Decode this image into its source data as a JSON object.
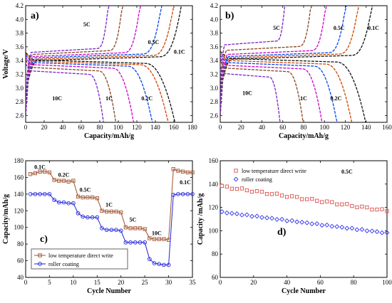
{
  "chart_data": [
    {
      "panel": "a)",
      "type": "line",
      "xlabel": "Capacity/mAh/g",
      "ylabel": "Voltage/V",
      "xlim": [
        0,
        180
      ],
      "ylim": [
        2.5,
        4.2
      ],
      "xticks": [
        0,
        20,
        40,
        60,
        80,
        100,
        120,
        140,
        160,
        180
      ],
      "yticks": [
        2.6,
        2.8,
        3.0,
        3.2,
        3.4,
        3.6,
        3.8,
        4.0,
        4.2
      ],
      "series": [
        {
          "rate": "0.1C",
          "charge_capacity": 168,
          "discharge_capacity": 162,
          "charge_plateau": 3.43,
          "discharge_plateau": 3.38
        },
        {
          "rate": "0.2C",
          "charge_capacity": 160,
          "discharge_capacity": 155,
          "charge_plateau": 3.45,
          "discharge_plateau": 3.36
        },
        {
          "rate": "0.5C",
          "charge_capacity": 147,
          "discharge_capacity": 138,
          "charge_plateau": 3.47,
          "discharge_plateau": 3.34
        },
        {
          "rate": "1C",
          "charge_capacity": 124,
          "discharge_capacity": 118,
          "charge_plateau": 3.49,
          "discharge_plateau": 3.31
        },
        {
          "rate": "5C",
          "charge_capacity": 105,
          "discharge_capacity": 99,
          "charge_plateau": 3.52,
          "discharge_plateau": 3.27
        },
        {
          "rate": "10C",
          "charge_capacity": 90,
          "discharge_capacity": 86,
          "charge_plateau": 3.55,
          "discharge_plateau": 3.22
        }
      ],
      "labels": [
        {
          "text": "5C",
          "x": 66,
          "y": 3.9
        },
        {
          "text": "0.5C",
          "x": 138,
          "y": 3.64
        },
        {
          "text": "0.1C",
          "x": 166,
          "y": 3.5
        },
        {
          "text": "10C",
          "x": 34,
          "y": 2.82
        },
        {
          "text": "1C",
          "x": 90,
          "y": 2.82
        },
        {
          "text": "0.2C",
          "x": 131,
          "y": 2.82
        }
      ]
    },
    {
      "panel": "b)",
      "type": "line",
      "xlabel": "Capacity/mAh/g",
      "ylabel": "",
      "xlim": [
        0,
        160
      ],
      "ylim": [
        2.5,
        4.2
      ],
      "xticks": [
        0,
        20,
        40,
        60,
        80,
        100,
        120,
        140,
        160
      ],
      "yticks": [
        2.6,
        2.8,
        3.0,
        3.2,
        3.4,
        3.6,
        3.8,
        4.0,
        4.2
      ],
      "series": [
        {
          "rate": "0.1C",
          "charge_capacity": 146,
          "discharge_capacity": 140,
          "charge_plateau": 3.45,
          "discharge_plateau": 3.4
        },
        {
          "rate": "0.2C",
          "charge_capacity": 133,
          "discharge_capacity": 127,
          "charge_plateau": 3.47,
          "discharge_plateau": 3.37
        },
        {
          "rate": "0.5C",
          "charge_capacity": 121,
          "discharge_capacity": 113,
          "charge_plateau": 3.49,
          "discharge_plateau": 3.34
        },
        {
          "rate": "1C",
          "charge_capacity": 102,
          "discharge_capacity": 99,
          "charge_plateau": 3.52,
          "discharge_plateau": 3.3
        },
        {
          "rate": "5C",
          "charge_capacity": 88,
          "discharge_capacity": 81,
          "charge_plateau": 3.58,
          "discharge_plateau": 3.26
        },
        {
          "rate": "10C",
          "charge_capacity": 63,
          "discharge_capacity": 59,
          "charge_plateau": 3.66,
          "discharge_plateau": 3.18
        }
      ],
      "labels": [
        {
          "text": "5C",
          "x": 54,
          "y": 3.85
        },
        {
          "text": "0.5C",
          "x": 114,
          "y": 3.85
        },
        {
          "text": "0.1C",
          "x": 147,
          "y": 3.85
        },
        {
          "text": "10C",
          "x": 26,
          "y": 2.9
        },
        {
          "text": "1C",
          "x": 80,
          "y": 2.82
        },
        {
          "text": "0.2C",
          "x": 111,
          "y": 2.82
        }
      ]
    },
    {
      "panel": "c)",
      "type": "line",
      "xlabel": "Cycle Number",
      "ylabel": "Capacity/mAh/g",
      "xlim": [
        0,
        35
      ],
      "ylim": [
        40,
        180
      ],
      "xticks": [
        0,
        5,
        10,
        15,
        20,
        25,
        30,
        35
      ],
      "yticks": [
        40,
        60,
        80,
        100,
        120,
        140,
        160,
        180
      ],
      "legend_position": "bottom-left",
      "series": [
        {
          "name": "low temperature direct write",
          "color": "#a0522d",
          "marker": "square",
          "x": [
            1,
            2,
            3,
            4,
            5,
            6,
            7,
            8,
            9,
            10,
            11,
            12,
            13,
            14,
            15,
            16,
            17,
            18,
            19,
            20,
            21,
            22,
            23,
            24,
            25,
            26,
            27,
            28,
            29,
            30,
            31,
            32,
            33,
            34,
            35
          ],
          "values": [
            164,
            165,
            167,
            167,
            166,
            157,
            156,
            156,
            155,
            156,
            137,
            136,
            136,
            136,
            135,
            120,
            119,
            119,
            119,
            118,
            100,
            99,
            99,
            99,
            98,
            87,
            86,
            86,
            86,
            85,
            170,
            168,
            167,
            166,
            166
          ]
        },
        {
          "name": "roller coating",
          "color": "#2222dd",
          "marker": "circle",
          "x": [
            1,
            2,
            3,
            4,
            5,
            6,
            7,
            8,
            9,
            10,
            11,
            12,
            13,
            14,
            15,
            16,
            17,
            18,
            19,
            20,
            21,
            22,
            23,
            24,
            25,
            26,
            27,
            28,
            29,
            30,
            31,
            32,
            33,
            34,
            35
          ],
          "values": [
            140,
            140,
            140,
            140,
            140,
            133,
            130,
            130,
            129,
            129,
            117,
            113,
            112,
            112,
            112,
            99,
            97,
            97,
            97,
            96,
            82,
            82,
            82,
            82,
            82,
            62,
            57,
            56,
            55,
            55,
            139,
            140,
            140,
            140,
            140
          ]
        }
      ],
      "labels": [
        {
          "text": "0.1C",
          "x": 3,
          "y": 170
        },
        {
          "text": "0.2C",
          "x": 8,
          "y": 161
        },
        {
          "text": "0.5C",
          "x": 12.5,
          "y": 143
        },
        {
          "text": "1C",
          "x": 17.5,
          "y": 125
        },
        {
          "text": "5C",
          "x": 22.5,
          "y": 107
        },
        {
          "text": "10C",
          "x": 27.5,
          "y": 91
        },
        {
          "text": "0.1C",
          "x": 33.5,
          "y": 152
        }
      ]
    },
    {
      "panel": "d)",
      "type": "scatter",
      "xlabel": "Cycle Number",
      "ylabel": "Capacity /mAh/g",
      "xlim": [
        0,
        100
      ],
      "ylim": [
        60,
        160
      ],
      "xticks": [
        0,
        20,
        40,
        60,
        80,
        100
      ],
      "yticks": [
        60,
        80,
        100,
        120,
        140,
        160
      ],
      "legend_position": "top-left",
      "annotation": "0.5C",
      "series": [
        {
          "name": "low temperature direct write",
          "color": "#d9534f",
          "marker": "open-square",
          "start": 138,
          "end": 117
        },
        {
          "name": "roller coating",
          "color": "#3333ee",
          "marker": "open-diamond",
          "start": 116,
          "end": 98
        }
      ]
    }
  ]
}
